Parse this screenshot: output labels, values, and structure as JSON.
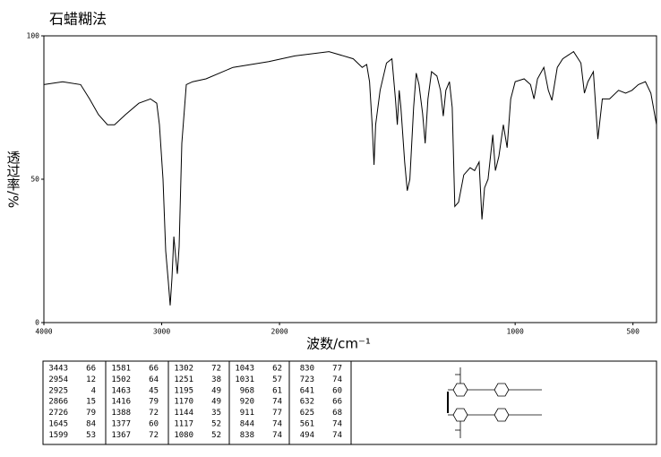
{
  "chart_data": {
    "type": "line",
    "title": "石蜡糊法",
    "xlabel": "波数/cm⁻¹",
    "ylabel": "透过率/%",
    "color": "#000000",
    "xlim": [
      4000,
      400
    ],
    "xticks": [
      4000,
      3000,
      2000,
      1000,
      500
    ],
    "xscale_break": {
      "at": 2000,
      "factor_above": 0.5
    },
    "ylim": [
      0,
      100
    ],
    "yticks": [
      0,
      50,
      100
    ],
    "x": [
      4000,
      3840,
      3688,
      3612,
      3536,
      3460,
      3400,
      3308,
      3194,
      3095,
      3042,
      3019,
      2989,
      2966,
      2943,
      2928,
      2913,
      2897,
      2882,
      2867,
      2852,
      2829,
      2791,
      2738,
      2624,
      2395,
      2091,
      1935,
      1790,
      1687,
      1649,
      1630,
      1618,
      1607,
      1599,
      1592,
      1573,
      1546,
      1523,
      1508,
      1500,
      1492,
      1485,
      1469,
      1458,
      1447,
      1431,
      1420,
      1408,
      1393,
      1382,
      1370,
      1355,
      1332,
      1317,
      1305,
      1294,
      1279,
      1267,
      1256,
      1240,
      1218,
      1191,
      1172,
      1153,
      1141,
      1130,
      1115,
      1095,
      1084,
      1069,
      1050,
      1034,
      1019,
      1000,
      962,
      935,
      920,
      905,
      878,
      859,
      844,
      821,
      798,
      752,
      721,
      706,
      691,
      668,
      649,
      630,
      599,
      561,
      531,
      504,
      477,
      447,
      424,
      400
    ],
    "values": [
      83,
      84,
      83,
      78,
      72.5,
      69,
      69,
      72.5,
      76.5,
      78,
      76.5,
      69,
      50,
      25,
      14,
      6,
      15.5,
      30,
      23,
      17,
      26.5,
      62.5,
      83,
      84,
      85,
      89,
      91,
      93,
      94.5,
      92,
      89,
      90,
      84,
      69,
      55,
      69,
      81,
      90.5,
      92,
      78,
      69,
      81,
      75,
      56,
      46,
      50,
      75,
      87,
      83,
      73,
      62.5,
      78,
      87.5,
      86,
      81,
      72,
      81,
      84,
      75,
      40.5,
      42,
      51.5,
      54,
      53,
      56,
      36,
      47,
      50,
      65.5,
      53,
      58,
      69,
      61,
      78,
      84,
      85,
      83,
      78,
      85,
      89,
      81,
      77.5,
      89,
      92,
      94.5,
      90.5,
      80,
      84,
      87.5,
      64,
      78,
      78,
      81,
      80,
      81,
      83,
      84,
      80,
      69
    ]
  },
  "peak_table": {
    "columns": [
      [
        [
          3443,
          66
        ],
        [
          2954,
          12
        ],
        [
          2925,
          4
        ],
        [
          2866,
          15
        ],
        [
          2726,
          79
        ],
        [
          1645,
          84
        ],
        [
          1599,
          53
        ]
      ],
      [
        [
          1581,
          66
        ],
        [
          1502,
          64
        ],
        [
          1463,
          45
        ],
        [
          1416,
          79
        ],
        [
          1388,
          72
        ],
        [
          1377,
          60
        ],
        [
          1367,
          72
        ]
      ],
      [
        [
          1302,
          72
        ],
        [
          1251,
          38
        ],
        [
          1195,
          49
        ],
        [
          1170,
          49
        ],
        [
          1144,
          35
        ],
        [
          1117,
          52
        ],
        [
          1080,
          52
        ]
      ],
      [
        [
          1043,
          62
        ],
        [
          1031,
          57
        ],
        [
          968,
          61
        ],
        [
          920,
          74
        ],
        [
          911,
          77
        ],
        [
          844,
          74
        ],
        [
          838,
          74
        ]
      ],
      [
        [
          830,
          77
        ],
        [
          723,
          74
        ],
        [
          641,
          60
        ],
        [
          632,
          66
        ],
        [
          625,
          68
        ],
        [
          561,
          74
        ],
        [
          494,
          74
        ]
      ]
    ]
  }
}
